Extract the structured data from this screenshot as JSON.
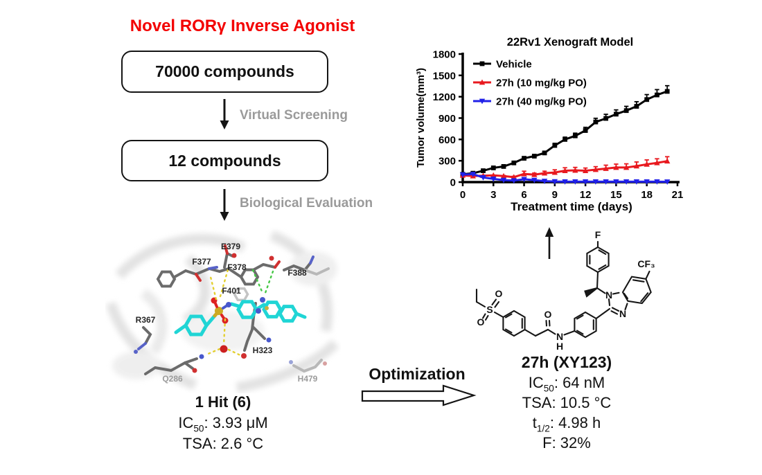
{
  "title": "Novel RORγ Inverse Agonist",
  "flow": {
    "box1": "70000 compounds",
    "step1": "Virtual Screening",
    "box2": "12 compounds",
    "step2": "Biological Evaluation",
    "optimization": "Optimization"
  },
  "pocket": {
    "residues": [
      "E379",
      "F377",
      "F378",
      "F388",
      "F401",
      "R367",
      "H323",
      "Q286",
      "H479"
    ]
  },
  "hit": {
    "title": "1 Hit (6)",
    "ic50": {
      "pre": "IC",
      "sub": "50",
      "rest": ": 3.93 μM"
    },
    "tsa": "TSA: 2.6 °C"
  },
  "lead": {
    "title": "27h (XY123)",
    "ic50": {
      "pre": "IC",
      "sub": "50",
      "rest": ":  64 nM"
    },
    "tsa": "TSA: 10.5 °C",
    "thalf": {
      "pre": "t",
      "sub": "1/2",
      "rest": ":  4.98 h"
    },
    "f": "F:  32%"
  },
  "structure": {
    "atoms": {
      "F": "F",
      "CF3": "CF₃",
      "N1": "N",
      "N3": "N",
      "N_amide": "N",
      "H_amide": "H",
      "S": "S",
      "O_s1": "O",
      "O_s2": "O",
      "O_carbonyl": "O"
    }
  },
  "chart_data": {
    "type": "line",
    "title": "22Rv1 Xenograft Model",
    "xlabel": "Treatment time (days)",
    "ylabel": "Tumor volume(mm³)",
    "xlim": [
      0,
      21
    ],
    "ylim": [
      0,
      1800
    ],
    "xticks": [
      0,
      3,
      6,
      9,
      12,
      15,
      18,
      21
    ],
    "yticks": [
      0,
      300,
      600,
      900,
      1200,
      1500,
      1800
    ],
    "grid": false,
    "legend_position": "top-left",
    "x": [
      0,
      1,
      2,
      3,
      4,
      5,
      6,
      7,
      8,
      9,
      10,
      11,
      12,
      13,
      14,
      15,
      16,
      17,
      18,
      19,
      20
    ],
    "series": [
      {
        "name": "Vehicle",
        "color": "#000000",
        "marker": "square",
        "values": [
          110,
          125,
          160,
          200,
          220,
          270,
          335,
          365,
          410,
          515,
          600,
          650,
          725,
          845,
          895,
          955,
          1005,
          1065,
          1160,
          1225,
          1275
        ],
        "err": [
          0,
          0,
          0,
          0,
          0,
          12,
          15,
          15,
          20,
          30,
          32,
          38,
          45,
          52,
          58,
          60,
          60,
          65,
          70,
          75,
          80
        ]
      },
      {
        "name": "27h (10 mg/kg PO)",
        "color": "#e8191f",
        "marker": "triangle-up",
        "values": [
          95,
          85,
          90,
          95,
          85,
          70,
          115,
          105,
          125,
          135,
          160,
          165,
          160,
          175,
          190,
          205,
          205,
          225,
          250,
          270,
          295
        ],
        "err": [
          0,
          0,
          0,
          0,
          8,
          12,
          38,
          22,
          28,
          38,
          42,
          42,
          38,
          42,
          48,
          48,
          52,
          58,
          62,
          58,
          62
        ]
      },
      {
        "name": "27h (40 mg/kg PO)",
        "color": "#2020e8",
        "marker": "triangle-down",
        "values": [
          105,
          112,
          65,
          45,
          28,
          22,
          40,
          28,
          14,
          8,
          6,
          6,
          6,
          6,
          6,
          6,
          6,
          6,
          6,
          6,
          5
        ],
        "err": [
          8,
          8,
          6,
          6,
          5,
          5,
          10,
          8,
          5,
          4,
          4,
          4,
          4,
          4,
          4,
          4,
          4,
          4,
          4,
          4,
          4
        ]
      }
    ]
  }
}
